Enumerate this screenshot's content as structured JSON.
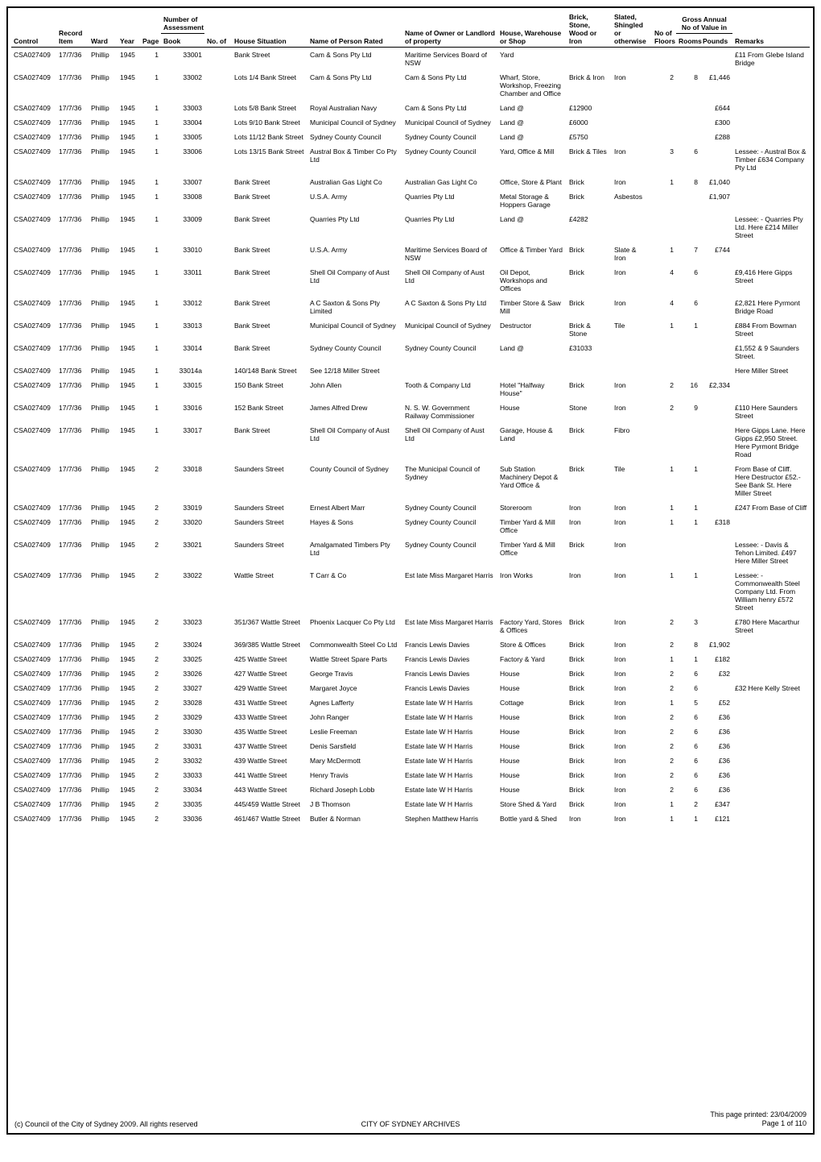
{
  "footer": {
    "left": "(c) Council of the City of Sydney 2009. All rights reserved",
    "center": "CITY OF SYDNEY ARCHIVES",
    "right_line1": "This page printed: 23/04/2009",
    "right_line2": "Page 1 of 110"
  },
  "headers": {
    "control": "Control",
    "record": "Record Item",
    "ward": "Ward",
    "year": "Year",
    "page": "Page",
    "book_top": "Number of Assessment",
    "book": "Book",
    "no": "No. of",
    "house": "House Situation",
    "person": "Name of Person Rated",
    "owner": "Name of Owner or Landlord of property",
    "hw": "House, Warehouse or Shop",
    "brick": "Brick, Stone, Wood or Iron",
    "slated": "Slated, Shingled or otherwise",
    "floors": "No of Floors",
    "gross_top": "Gross Annual",
    "gross_bot": "No of Value in",
    "rooms": "Rooms",
    "pounds": "Pounds",
    "remarks": "Remarks"
  },
  "rows": [
    {
      "control": "CSA027409",
      "record": "17/7/36",
      "ward": "Phillip",
      "year": "1945",
      "page": "1",
      "book": "33001",
      "no": "",
      "house": "Bank Street",
      "person": "Cam & Sons Pty Ltd",
      "owner": "Maritime Services Board of NSW",
      "hw": "Yard",
      "brick": "",
      "slated": "",
      "floors": "",
      "rooms": "",
      "pounds": "",
      "remarks": "£11 From Glebe Island Bridge"
    },
    {
      "control": "CSA027409",
      "record": "17/7/36",
      "ward": "Phillip",
      "year": "1945",
      "page": "1",
      "book": "33002",
      "no": "",
      "house": "Lots 1/4 Bank Street",
      "person": "Cam & Sons Pty Ltd",
      "owner": "Cam & Sons Pty Ltd",
      "hw": "Wharf, Store, Workshop, Freezing Chamber and Office",
      "brick": "Brick & Iron",
      "slated": "Iron",
      "floors": "2",
      "rooms": "8",
      "pounds": "£1,446",
      "remarks": ""
    },
    {
      "control": "CSA027409",
      "record": "17/7/36",
      "ward": "Phillip",
      "year": "1945",
      "page": "1",
      "book": "33003",
      "no": "",
      "house": "Lots 5/8 Bank Street",
      "person": "Royal Australian Navy",
      "owner": "Cam & Sons Pty Ltd",
      "hw": "Land @",
      "brick": "£12900",
      "slated": "",
      "floors": "",
      "rooms": "",
      "pounds": "£644",
      "remarks": ""
    },
    {
      "control": "CSA027409",
      "record": "17/7/36",
      "ward": "Phillip",
      "year": "1945",
      "page": "1",
      "book": "33004",
      "no": "",
      "house": "Lots 9/10 Bank Street",
      "person": "Municipal Council of Sydney",
      "owner": "Municipal Council of Sydney",
      "hw": "Land @",
      "brick": "£6000",
      "slated": "",
      "floors": "",
      "rooms": "",
      "pounds": "£300",
      "remarks": ""
    },
    {
      "control": "CSA027409",
      "record": "17/7/36",
      "ward": "Phillip",
      "year": "1945",
      "page": "1",
      "book": "33005",
      "no": "",
      "house": "Lots 11/12 Bank Street",
      "person": "Sydney County Council",
      "owner": "Sydney County Council",
      "hw": "Land @",
      "brick": "£5750",
      "slated": "",
      "floors": "",
      "rooms": "",
      "pounds": "£288",
      "remarks": ""
    },
    {
      "control": "CSA027409",
      "record": "17/7/36",
      "ward": "Phillip",
      "year": "1945",
      "page": "1",
      "book": "33006",
      "no": "",
      "house": "Lots 13/15 Bank Street",
      "person": "Austral Box & Timber Co Pty Ltd",
      "owner": "Sydney County Council",
      "hw": "Yard, Office & Mill",
      "brick": "Brick & Tiles",
      "slated": "Iron",
      "floors": "3",
      "rooms": "6",
      "pounds": "",
      "remarks": "Lessee: - Austral Box & Timber £634 Company Pty Ltd"
    },
    {
      "control": "CSA027409",
      "record": "17/7/36",
      "ward": "Phillip",
      "year": "1945",
      "page": "1",
      "book": "33007",
      "no": "",
      "house": "Bank Street",
      "person": "Australian Gas Light Co",
      "owner": "Australian Gas Light Co",
      "hw": "Office, Store & Plant",
      "brick": "Brick",
      "slated": "Iron",
      "floors": "1",
      "rooms": "8",
      "pounds": "£1,040",
      "remarks": ""
    },
    {
      "control": "CSA027409",
      "record": "17/7/36",
      "ward": "Phillip",
      "year": "1945",
      "page": "1",
      "book": "33008",
      "no": "",
      "house": "Bank Street",
      "person": "U.S.A. Army",
      "owner": "Quarries Pty Ltd",
      "hw": "Metal Storage & Hoppers Garage",
      "brick": "Brick",
      "slated": "Asbestos",
      "floors": "",
      "rooms": "",
      "pounds": "£1,907",
      "remarks": ""
    },
    {
      "control": "CSA027409",
      "record": "17/7/36",
      "ward": "Phillip",
      "year": "1945",
      "page": "1",
      "book": "33009",
      "no": "",
      "house": "Bank Street",
      "person": "Quarries Pty Ltd",
      "owner": "Quarries Pty Ltd",
      "hw": "Land @",
      "brick": "£4282",
      "slated": "",
      "floors": "",
      "rooms": "",
      "pounds": "",
      "remarks": "Lessee: - Quarries Pty Ltd. Here £214 Miller Street"
    },
    {
      "control": "CSA027409",
      "record": "17/7/36",
      "ward": "Phillip",
      "year": "1945",
      "page": "1",
      "book": "33010",
      "no": "",
      "house": "Bank Street",
      "person": "U.S.A. Army",
      "owner": "Maritime Services Board of NSW",
      "hw": "Office & Timber Yard",
      "brick": "Brick",
      "slated": "Slate & Iron",
      "floors": "1",
      "rooms": "7",
      "pounds": "£744",
      "remarks": ""
    },
    {
      "control": "CSA027409",
      "record": "17/7/36",
      "ward": "Phillip",
      "year": "1945",
      "page": "1",
      "book": "33011",
      "no": "",
      "house": "Bank Street",
      "person": "Shell Oil Company of Aust Ltd",
      "owner": "Shell Oil Company of Aust Ltd",
      "hw": "Oil Depot, Workshops and Offices",
      "brick": "Brick",
      "slated": "Iron",
      "floors": "4",
      "rooms": "6",
      "pounds": "",
      "remarks": "£9,416 Here Gipps Street"
    },
    {
      "control": "CSA027409",
      "record": "17/7/36",
      "ward": "Phillip",
      "year": "1945",
      "page": "1",
      "book": "33012",
      "no": "",
      "house": "Bank Street",
      "person": "A C Saxton & Sons Pty Limited",
      "owner": "A C Saxton & Sons Pty Ltd",
      "hw": "Timber Store & Saw Mill",
      "brick": "Brick",
      "slated": "Iron",
      "floors": "4",
      "rooms": "6",
      "pounds": "",
      "remarks": "£2,821 Here Pyrmont Bridge Road"
    },
    {
      "control": "CSA027409",
      "record": "17/7/36",
      "ward": "Phillip",
      "year": "1945",
      "page": "1",
      "book": "33013",
      "no": "",
      "house": "Bank Street",
      "person": "Municipal Council of Sydney",
      "owner": "Municipal Council of Sydney",
      "hw": "Destructor",
      "brick": "Brick & Stone",
      "slated": "Tile",
      "floors": "1",
      "rooms": "1",
      "pounds": "",
      "remarks": "£884 From Bowman Street"
    },
    {
      "control": "CSA027409",
      "record": "17/7/36",
      "ward": "Phillip",
      "year": "1945",
      "page": "1",
      "book": "33014",
      "no": "",
      "house": "Bank Street",
      "person": "Sydney County Council",
      "owner": "Sydney County Council",
      "hw": "Land @",
      "brick": "£31033",
      "slated": "",
      "floors": "",
      "rooms": "",
      "pounds": "",
      "remarks": "£1,552 & 9 Saunders Street."
    },
    {
      "control": "CSA027409",
      "record": "17/7/36",
      "ward": "Phillip",
      "year": "1945",
      "page": "1",
      "book": "33014a",
      "no": "",
      "house": "140/148 Bank Street",
      "person": "See 12/18 Miller Street",
      "owner": "",
      "hw": "",
      "brick": "",
      "slated": "",
      "floors": "",
      "rooms": "",
      "pounds": "",
      "remarks": "Here Miller Street"
    },
    {
      "control": "CSA027409",
      "record": "17/7/36",
      "ward": "Phillip",
      "year": "1945",
      "page": "1",
      "book": "33015",
      "no": "",
      "house": "150 Bank Street",
      "person": "John Allen",
      "owner": "Tooth & Company Ltd",
      "hw": "Hotel \"Halfway House\"",
      "brick": "Brick",
      "slated": "Iron",
      "floors": "2",
      "rooms": "16",
      "pounds": "£2,334",
      "remarks": ""
    },
    {
      "control": "CSA027409",
      "record": "17/7/36",
      "ward": "Phillip",
      "year": "1945",
      "page": "1",
      "book": "33016",
      "no": "",
      "house": "152 Bank Street",
      "person": "James Alfred Drew",
      "owner": "N. S. W. Government Railway Commissioner",
      "hw": "House",
      "brick": "Stone",
      "slated": "Iron",
      "floors": "2",
      "rooms": "9",
      "pounds": "",
      "remarks": "£110 Here Saunders Street"
    },
    {
      "control": "CSA027409",
      "record": "17/7/36",
      "ward": "Phillip",
      "year": "1945",
      "page": "1",
      "book": "33017",
      "no": "",
      "house": "Bank Street",
      "person": "Shell Oil Company of Aust Ltd",
      "owner": "Shell Oil Company of Aust Ltd",
      "hw": "Garage, House & Land",
      "brick": "Brick",
      "slated": "Fibro",
      "floors": "",
      "rooms": "",
      "pounds": "",
      "remarks": "Here Gipps Lane. Here Gipps £2,950 Street. Here Pyrmont Bridge Road"
    },
    {
      "control": "CSA027409",
      "record": "17/7/36",
      "ward": "Phillip",
      "year": "1945",
      "page": "2",
      "book": "33018",
      "no": "",
      "house": "Saunders Street",
      "person": "County Council of Sydney",
      "owner": "The Municipal Council of Sydney",
      "hw": "Sub Station Machinery Depot & Yard Office &",
      "brick": "Brick",
      "slated": "Tile",
      "floors": "1",
      "rooms": "1",
      "pounds": "",
      "remarks": "From Base of Cliff. Here Destructor £52.- See Bank St. Here Miller Street"
    },
    {
      "control": "CSA027409",
      "record": "17/7/36",
      "ward": "Phillip",
      "year": "1945",
      "page": "2",
      "book": "33019",
      "no": "",
      "house": "Saunders Street",
      "person": "Ernest Albert Marr",
      "owner": "Sydney County Council",
      "hw": "Storeroom",
      "brick": "Iron",
      "slated": "Iron",
      "floors": "1",
      "rooms": "1",
      "pounds": "",
      "remarks": "£247 From Base of Cliff"
    },
    {
      "control": "CSA027409",
      "record": "17/7/36",
      "ward": "Phillip",
      "year": "1945",
      "page": "2",
      "book": "33020",
      "no": "",
      "house": "Saunders Street",
      "person": "Hayes & Sons",
      "owner": "Sydney County Council",
      "hw": "Timber Yard & Mill Office",
      "brick": "Iron",
      "slated": "Iron",
      "floors": "1",
      "rooms": "1",
      "pounds": "£318",
      "remarks": ""
    },
    {
      "control": "CSA027409",
      "record": "17/7/36",
      "ward": "Phillip",
      "year": "1945",
      "page": "2",
      "book": "33021",
      "no": "",
      "house": "Saunders Street",
      "person": "Amalgamated Timbers Pty Ltd",
      "owner": "Sydney County Council",
      "hw": "Timber Yard & Mill Office",
      "brick": "Brick",
      "slated": "Iron",
      "floors": "",
      "rooms": "",
      "pounds": "",
      "remarks": "Lessee: - Davis & Tehon Limited. £497 Here Miller Street"
    },
    {
      "control": "CSA027409",
      "record": "17/7/36",
      "ward": "Phillip",
      "year": "1945",
      "page": "2",
      "book": "33022",
      "no": "",
      "house": "Wattle Street",
      "person": "T Carr & Co",
      "owner": "Est late Miss Margaret Harris",
      "hw": "Iron Works",
      "brick": "Iron",
      "slated": "Iron",
      "floors": "1",
      "rooms": "1",
      "pounds": "",
      "remarks": "Lessee: - Commonwealth Steel Company Ltd. From William henry £572 Street"
    },
    {
      "control": "CSA027409",
      "record": "17/7/36",
      "ward": "Phillip",
      "year": "1945",
      "page": "2",
      "book": "33023",
      "no": "",
      "house": "351/367 Wattle Street",
      "person": "Phoenix Lacquer Co Pty Ltd",
      "owner": "Est late Miss Margaret Harris",
      "hw": "Factory Yard, Stores & Offices",
      "brick": "Brick",
      "slated": "Iron",
      "floors": "2",
      "rooms": "3",
      "pounds": "",
      "remarks": "£780 Here Macarthur Street"
    },
    {
      "control": "CSA027409",
      "record": "17/7/36",
      "ward": "Phillip",
      "year": "1945",
      "page": "2",
      "book": "33024",
      "no": "",
      "house": "369/385 Wattle Street",
      "person": "Commonwealth Steel Co Ltd",
      "owner": "Francis Lewis Davies",
      "hw": "Store & Offices",
      "brick": "Brick",
      "slated": "Iron",
      "floors": "2",
      "rooms": "8",
      "pounds": "£1,902",
      "remarks": ""
    },
    {
      "control": "CSA027409",
      "record": "17/7/36",
      "ward": "Phillip",
      "year": "1945",
      "page": "2",
      "book": "33025",
      "no": "",
      "house": "425 Wattle Street",
      "person": "Wattle Street Spare Parts",
      "owner": "Francis Lewis Davies",
      "hw": "Factory & Yard",
      "brick": "Brick",
      "slated": "Iron",
      "floors": "1",
      "rooms": "1",
      "pounds": "£182",
      "remarks": ""
    },
    {
      "control": "CSA027409",
      "record": "17/7/36",
      "ward": "Phillip",
      "year": "1945",
      "page": "2",
      "book": "33026",
      "no": "",
      "house": "427 Wattle Street",
      "person": "George Travis",
      "owner": "Francis Lewis Davies",
      "hw": "House",
      "brick": "Brick",
      "slated": "Iron",
      "floors": "2",
      "rooms": "6",
      "pounds": "£32",
      "remarks": ""
    },
    {
      "control": "CSA027409",
      "record": "17/7/36",
      "ward": "Phillip",
      "year": "1945",
      "page": "2",
      "book": "33027",
      "no": "",
      "house": "429 Wattle Street",
      "person": "Margaret Joyce",
      "owner": "Francis Lewis Davies",
      "hw": "House",
      "brick": "Brick",
      "slated": "Iron",
      "floors": "2",
      "rooms": "6",
      "pounds": "",
      "remarks": "£32 Here Kelly Street"
    },
    {
      "control": "CSA027409",
      "record": "17/7/36",
      "ward": "Phillip",
      "year": "1945",
      "page": "2",
      "book": "33028",
      "no": "",
      "house": "431 Wattle Street",
      "person": "Agnes Lafferty",
      "owner": "Estate late W H Harris",
      "hw": "Cottage",
      "brick": "Brick",
      "slated": "Iron",
      "floors": "1",
      "rooms": "5",
      "pounds": "£52",
      "remarks": ""
    },
    {
      "control": "CSA027409",
      "record": "17/7/36",
      "ward": "Phillip",
      "year": "1945",
      "page": "2",
      "book": "33029",
      "no": "",
      "house": "433 Wattle Street",
      "person": "John Ranger",
      "owner": "Estate late W H Harris",
      "hw": "House",
      "brick": "Brick",
      "slated": "Iron",
      "floors": "2",
      "rooms": "6",
      "pounds": "£36",
      "remarks": ""
    },
    {
      "control": "CSA027409",
      "record": "17/7/36",
      "ward": "Phillip",
      "year": "1945",
      "page": "2",
      "book": "33030",
      "no": "",
      "house": "435 Wattle Street",
      "person": "Leslie Freeman",
      "owner": "Estate late W H Harris",
      "hw": "House",
      "brick": "Brick",
      "slated": "Iron",
      "floors": "2",
      "rooms": "6",
      "pounds": "£36",
      "remarks": ""
    },
    {
      "control": "CSA027409",
      "record": "17/7/36",
      "ward": "Phillip",
      "year": "1945",
      "page": "2",
      "book": "33031",
      "no": "",
      "house": "437 Wattle Street",
      "person": "Denis Sarsfield",
      "owner": "Estate late W H Harris",
      "hw": "House",
      "brick": "Brick",
      "slated": "Iron",
      "floors": "2",
      "rooms": "6",
      "pounds": "£36",
      "remarks": ""
    },
    {
      "control": "CSA027409",
      "record": "17/7/36",
      "ward": "Phillip",
      "year": "1945",
      "page": "2",
      "book": "33032",
      "no": "",
      "house": "439 Wattle Street",
      "person": "Mary McDermott",
      "owner": "Estate late W H Harris",
      "hw": "House",
      "brick": "Brick",
      "slated": "Iron",
      "floors": "2",
      "rooms": "6",
      "pounds": "£36",
      "remarks": ""
    },
    {
      "control": "CSA027409",
      "record": "17/7/36",
      "ward": "Phillip",
      "year": "1945",
      "page": "2",
      "book": "33033",
      "no": "",
      "house": "441 Wattle Street",
      "person": "Henry Travis",
      "owner": "Estate late W H Harris",
      "hw": "House",
      "brick": "Brick",
      "slated": "Iron",
      "floors": "2",
      "rooms": "6",
      "pounds": "£36",
      "remarks": ""
    },
    {
      "control": "CSA027409",
      "record": "17/7/36",
      "ward": "Phillip",
      "year": "1945",
      "page": "2",
      "book": "33034",
      "no": "",
      "house": "443 Wattle Street",
      "person": "Richard Joseph Lobb",
      "owner": "Estate late W H Harris",
      "hw": "House",
      "brick": "Brick",
      "slated": "Iron",
      "floors": "2",
      "rooms": "6",
      "pounds": "£36",
      "remarks": ""
    },
    {
      "control": "CSA027409",
      "record": "17/7/36",
      "ward": "Phillip",
      "year": "1945",
      "page": "2",
      "book": "33035",
      "no": "",
      "house": "445/459 Wattle Street",
      "person": "J B Thomson",
      "owner": "Estate late W H Harris",
      "hw": "Store Shed & Yard",
      "brick": "Brick",
      "slated": "Iron",
      "floors": "1",
      "rooms": "2",
      "pounds": "£347",
      "remarks": ""
    },
    {
      "control": "CSA027409",
      "record": "17/7/36",
      "ward": "Phillip",
      "year": "1945",
      "page": "2",
      "book": "33036",
      "no": "",
      "house": "461/467 Wattle Street",
      "person": "Butler & Norman",
      "owner": "Stephen Matthew Harris",
      "hw": "Bottle yard & Shed",
      "brick": "Iron",
      "slated": "Iron",
      "floors": "1",
      "rooms": "1",
      "pounds": "£121",
      "remarks": ""
    }
  ]
}
